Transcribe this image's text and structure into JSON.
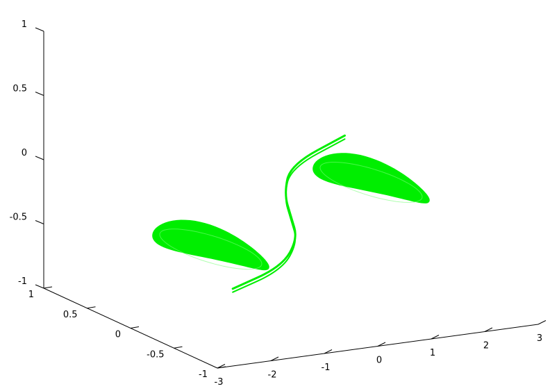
{
  "chart_data": {
    "type": "scatter",
    "projection": "3d",
    "title": "",
    "xlabel": "",
    "ylabel": "",
    "zlabel": "",
    "grid": false,
    "legend": "none",
    "series_color": "#00ee00",
    "xlim": [
      -3,
      3
    ],
    "ylim": [
      -1,
      1
    ],
    "zlim": [
      -1,
      1
    ],
    "x_ticks": [
      {
        "value": -3,
        "label": "-3"
      },
      {
        "value": -2,
        "label": "-2"
      },
      {
        "value": -1,
        "label": "-1"
      },
      {
        "value": 0,
        "label": "0"
      },
      {
        "value": 1,
        "label": "1"
      },
      {
        "value": 2,
        "label": "2"
      },
      {
        "value": 3,
        "label": "3"
      }
    ],
    "y_ticks": [
      {
        "value": 1,
        "label": "1"
      },
      {
        "value": 0.5,
        "label": "0.5"
      },
      {
        "value": 0,
        "label": "0"
      },
      {
        "value": -0.5,
        "label": "-0.5"
      },
      {
        "value": -1,
        "label": "-1"
      }
    ],
    "z_ticks": [
      {
        "value": 1,
        "label": "1"
      },
      {
        "value": 0.5,
        "label": "0.5"
      },
      {
        "value": 0,
        "label": "0"
      },
      {
        "value": -0.5,
        "label": "-0.5"
      },
      {
        "value": -1,
        "label": "-1"
      }
    ],
    "attractor": {
      "lobes": [
        {
          "center_x": -1.5,
          "center_y": 0,
          "radius_x": 0.6,
          "radius_y": 0.55,
          "z": -0.45
        },
        {
          "center_x": 1.5,
          "center_y": 0,
          "radius_x": 0.6,
          "radius_y": 0.55,
          "z": -0.1
        }
      ],
      "connector": [
        {
          "x": -1.9,
          "y": -0.5,
          "z": -0.6
        },
        {
          "x": -0.9,
          "y": -0.45,
          "z": -0.5
        },
        {
          "x": -0.2,
          "y": -0.2,
          "z": -0.4
        },
        {
          "x": 0.0,
          "y": 0.0,
          "z": -0.3
        },
        {
          "x": 0.2,
          "y": 0.2,
          "z": -0.2
        },
        {
          "x": 0.8,
          "y": 0.5,
          "z": -0.1
        },
        {
          "x": 1.9,
          "y": 0.55,
          "z": 0.05
        }
      ]
    }
  }
}
